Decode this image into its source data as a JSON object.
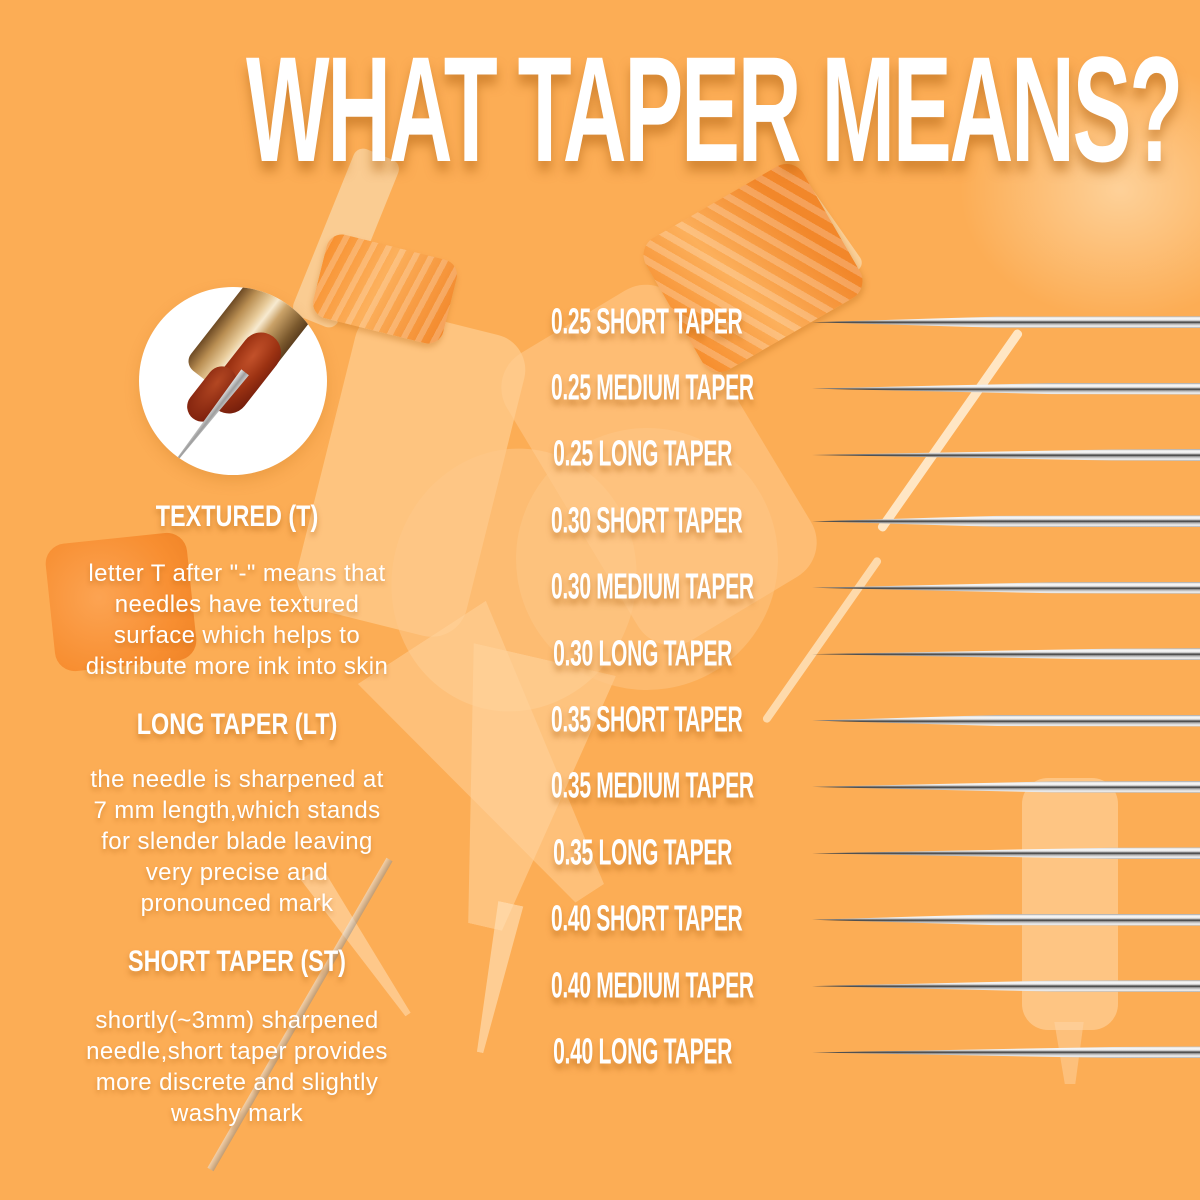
{
  "title": "WHAT TAPER MEANS?",
  "left_panel": {
    "sections": [
      {
        "heading": "TEXTURED (T)",
        "body": "letter T after \"-\" means that\nneedles have textured\nsurface which helps to\ndistribute more ink into skin"
      },
      {
        "heading": "LONG TAPER (LT)",
        "body": "the needle is sharpened  at\n7 mm length,which stands\nfor slender blade leaving\nvery precise and\npronounced mark"
      },
      {
        "heading": "SHORT TAPER (ST)",
        "body": "shortly(~3mm) sharpened\nneedle,short taper provides\nmore discrete and slightly\nwashy mark"
      }
    ]
  },
  "taper_rows": [
    {
      "label": "0.25 SHORT TAPER",
      "taper": "short"
    },
    {
      "label": "0.25 MEDIUM TAPER",
      "taper": "medium"
    },
    {
      "label": "0.25 LONG TAPER",
      "taper": "long"
    },
    {
      "label": "0.30 SHORT TAPER",
      "taper": "short"
    },
    {
      "label": "0.30 MEDIUM TAPER",
      "taper": "medium"
    },
    {
      "label": "0.30 LONG TAPER",
      "taper": "long"
    },
    {
      "label": "0.35 SHORT TAPER",
      "taper": "short"
    },
    {
      "label": "0.35 MEDIUM TAPER",
      "taper": "medium"
    },
    {
      "label": "0.35 LONG TAPER",
      "taper": "long"
    },
    {
      "label": "0.40 SHORT TAPER",
      "taper": "short"
    },
    {
      "label": "0.40 MEDIUM TAPER",
      "taper": "medium"
    },
    {
      "label": "0.40 LONG TAPER",
      "taper": "long"
    }
  ],
  "images": {
    "inset_circle": "needle-tip-closeup-photo",
    "background": "crossed-translucent-tattoo-cartridges-photo",
    "row_graphic": "tattoo-needle-pointing-left"
  },
  "colors": {
    "background": "#FCAD55",
    "text": "#FFFFFF",
    "cartridge_orange": "#F78F2E",
    "needle_silver": "#C9C9C9"
  }
}
